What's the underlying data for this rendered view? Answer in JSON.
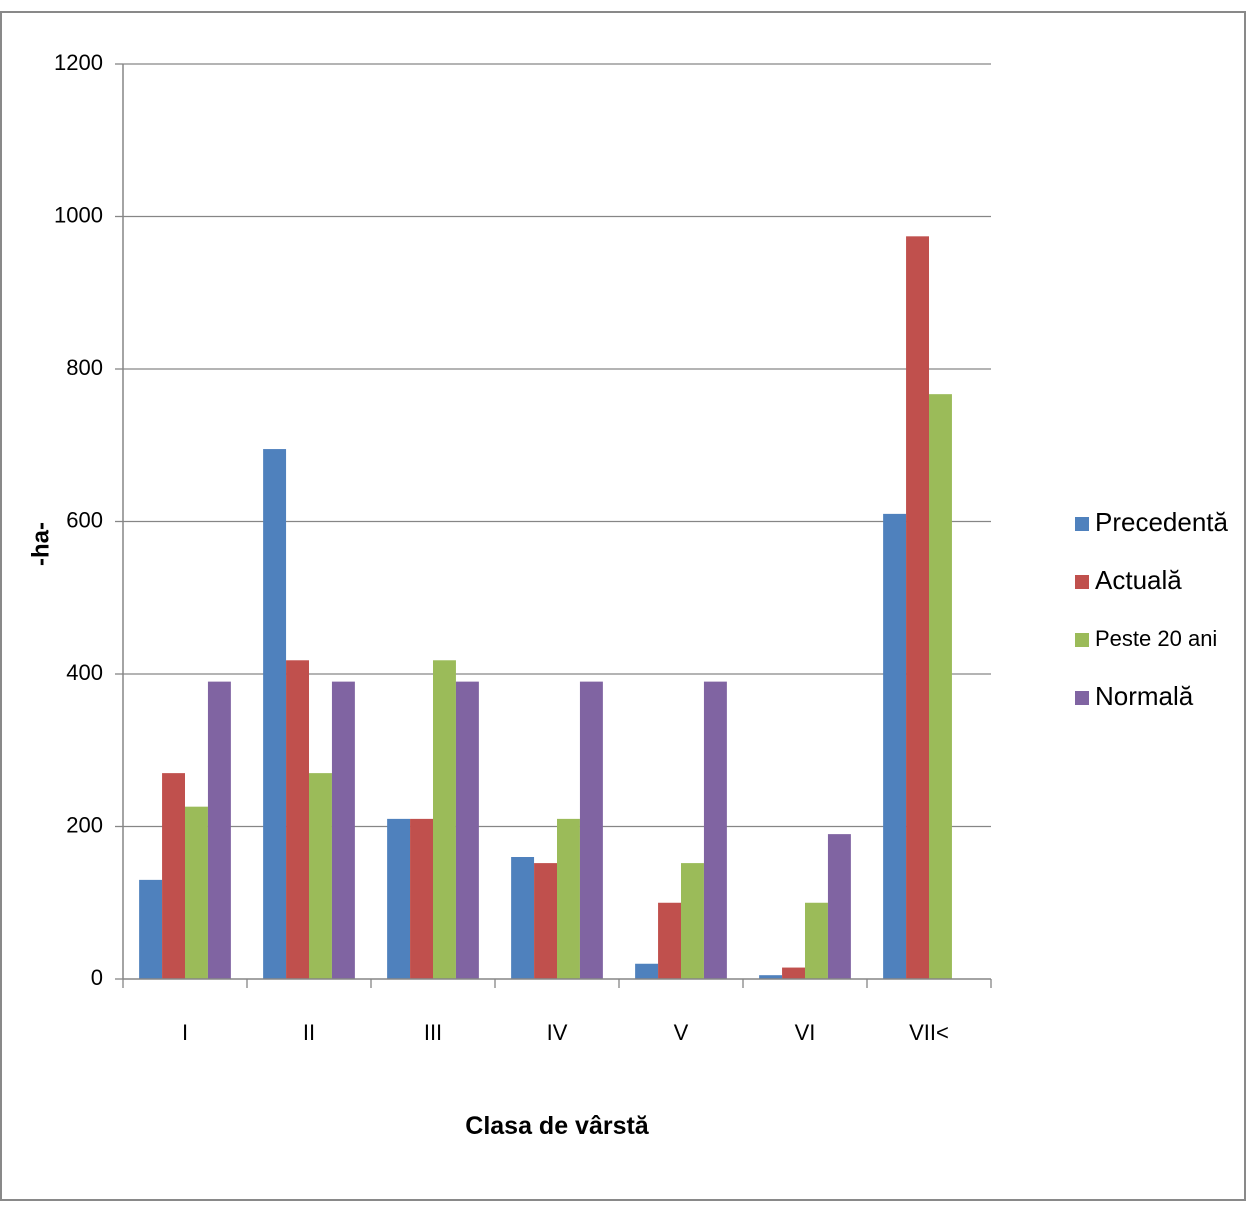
{
  "chart_data": {
    "type": "bar",
    "title": "",
    "xlabel": "Clasa de vârstă",
    "ylabel": "-ha-",
    "categories": [
      "I",
      "II",
      "III",
      "IV",
      "V",
      "VI",
      "VII<"
    ],
    "ylim": [
      0,
      1200
    ],
    "yticks": [
      0,
      200,
      400,
      600,
      800,
      1000,
      1200
    ],
    "grid": true,
    "legend_position": "right",
    "series": [
      {
        "name": "Precedentă",
        "color": "#4F81BD",
        "values": [
          130,
          695,
          210,
          160,
          20,
          5,
          610
        ]
      },
      {
        "name": "Actuală",
        "color": "#C0504D",
        "values": [
          270,
          418,
          210,
          152,
          100,
          15,
          974
        ]
      },
      {
        "name": "Peste 20 ani",
        "color": "#9BBB59",
        "values": [
          226,
          270,
          418,
          210,
          152,
          100,
          767
        ]
      },
      {
        "name": "Normală",
        "color": "#8064A2",
        "values": [
          390,
          390,
          390,
          390,
          390,
          190,
          null
        ]
      }
    ]
  }
}
